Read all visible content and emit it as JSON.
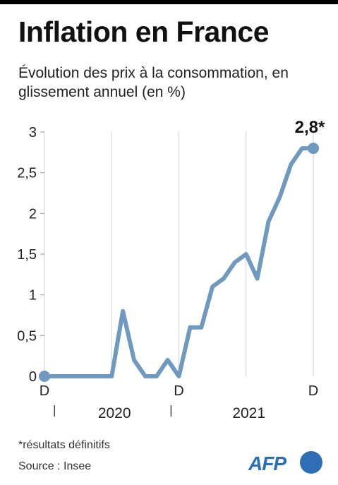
{
  "header": {
    "title": "Inflation en France",
    "subtitle": "Évolution des prix à la consommation, en glissement annuel (en %)"
  },
  "chart_data": {
    "type": "line",
    "title": "Inflation en France",
    "subtitle": "Évolution des prix à la consommation, en glissement annuel (en %)",
    "xlabel": "",
    "ylabel": "",
    "ylim": [
      0,
      3
    ],
    "y_ticks": [
      "0",
      "0,5",
      "1",
      "1,5",
      "2",
      "2,5",
      "3"
    ],
    "y_tick_values": [
      0,
      0.5,
      1,
      1.5,
      2,
      2.5,
      3
    ],
    "x_month_ticks": [
      {
        "label": "D",
        "month_index": 0
      },
      {
        "label": "D",
        "month_index": 12
      },
      {
        "label": "D",
        "month_index": 24
      }
    ],
    "year_labels": [
      {
        "label": "2020",
        "center_month_index": 6.5
      },
      {
        "label": "2021",
        "center_month_index": 18.5
      }
    ],
    "grid": "vertical",
    "line_color": "#6f99bf",
    "series": [
      {
        "x": [
          "2019-12",
          "2020-01",
          "2020-02",
          "2020-03",
          "2020-04",
          "2020-05",
          "2020-06",
          "2020-07",
          "2020-08",
          "2020-09",
          "2020-10",
          "2020-11",
          "2020-12",
          "2021-01",
          "2021-02",
          "2021-03",
          "2021-04",
          "2021-05",
          "2021-06",
          "2021-07",
          "2021-08",
          "2021-09",
          "2021-10",
          "2021-11",
          "2021-12"
        ],
        "values": [
          0,
          0,
          0,
          0,
          0,
          0,
          0,
          0.8,
          0.2,
          0,
          0,
          0.2,
          0,
          0.6,
          0.6,
          1.1,
          1.2,
          1.4,
          1.5,
          1.2,
          1.9,
          2.2,
          2.6,
          2.8,
          2.8
        ]
      }
    ],
    "annotations": [
      {
        "text": "2,8*",
        "month_index": 24,
        "value": 2.8
      }
    ]
  },
  "footer": {
    "note": "*résultats définitifs",
    "source": "Source : Insee",
    "logo_text": "AFP"
  }
}
